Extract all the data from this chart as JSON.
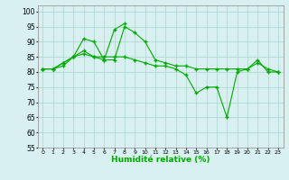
{
  "xlabel": "Humidité relative (%)",
  "background_color": "#d8f0f0",
  "grid_color": "#b0d8d8",
  "line_color": "#00aa00",
  "ylim": [
    55,
    102
  ],
  "xlim": [
    -0.5,
    23.5
  ],
  "yticks": [
    55,
    60,
    65,
    70,
    75,
    80,
    85,
    90,
    95,
    100
  ],
  "xticks": [
    0,
    1,
    2,
    3,
    4,
    5,
    6,
    7,
    8,
    9,
    10,
    11,
    12,
    13,
    14,
    15,
    16,
    17,
    18,
    19,
    20,
    21,
    22,
    23
  ],
  "series": [
    [
      81,
      81,
      82,
      85,
      87,
      85,
      84,
      84,
      95,
      93,
      90,
      84,
      83,
      82,
      82,
      81,
      81,
      81,
      81,
      81,
      81,
      83,
      81,
      80
    ],
    [
      81,
      81,
      83,
      85,
      91,
      90,
      84,
      94,
      96,
      null,
      null,
      null,
      null,
      null,
      null,
      null,
      null,
      null,
      null,
      null,
      null,
      null,
      null,
      null
    ],
    [
      81,
      81,
      83,
      85,
      86,
      85,
      85,
      85,
      85,
      84,
      83,
      82,
      82,
      81,
      79,
      73,
      75,
      75,
      65,
      80,
      81,
      84,
      80,
      80
    ]
  ]
}
